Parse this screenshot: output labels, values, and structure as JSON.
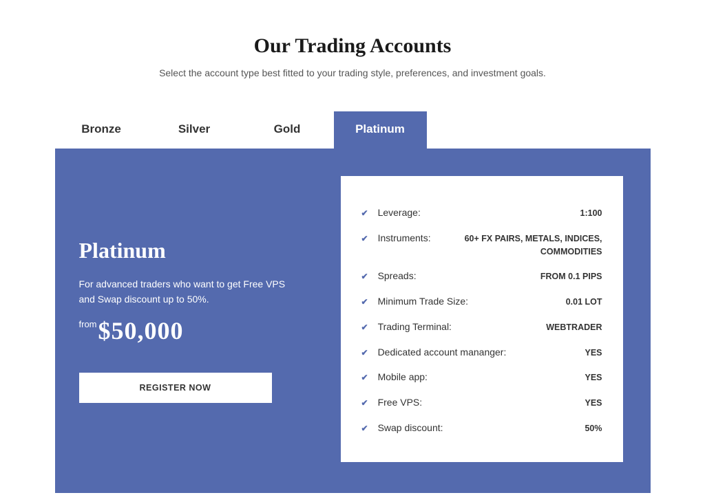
{
  "header": {
    "title": "Our Trading Accounts",
    "subtitle": "Select the account type best fitted to your trading style, preferences, and investment goals."
  },
  "tabs": {
    "items": [
      "Bronze",
      "Silver",
      "Gold",
      "Platinum"
    ],
    "active_index": 3
  },
  "panel": {
    "tier_name": "Platinum",
    "description": "For advanced traders who want to get Free VPS and Swap discount up to 50%.",
    "price_prefix": "from",
    "price": "$50,000",
    "register_label": "REGISTER NOW"
  },
  "features": [
    {
      "label": "Leverage:",
      "value": "1:100"
    },
    {
      "label": "Instruments:",
      "value": "60+ FX PAIRS, METALS, INDICES, COMMODITIES"
    },
    {
      "label": "Spreads:",
      "value": "FROM 0.1 PIPS"
    },
    {
      "label": "Minimum Trade Size:",
      "value": "0.01 LOT"
    },
    {
      "label": "Trading Terminal:",
      "value": "WEBTRADER"
    },
    {
      "label": "Dedicated account mananger:",
      "value": "YES"
    },
    {
      "label": "Mobile app:",
      "value": "YES"
    },
    {
      "label": "Free VPS:",
      "value": "YES"
    },
    {
      "label": "Swap discount:",
      "value": "50%"
    }
  ],
  "colors": {
    "accent": "#546aae",
    "background": "#ffffff",
    "text_dark": "#333333",
    "text_muted": "#555555"
  }
}
